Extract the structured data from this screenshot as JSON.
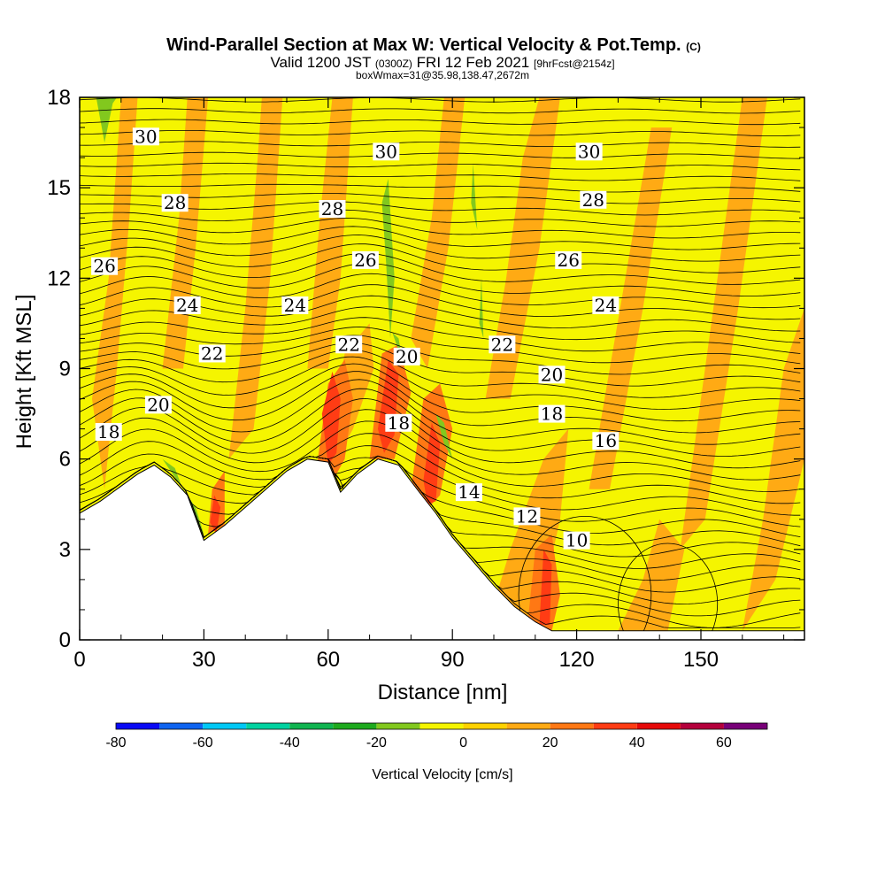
{
  "chart_data": {
    "type": "contour",
    "title": "Wind-Parallel Section at Max W: Vertical Velocity & Pot.Temp.",
    "title_mark": "(C)",
    "subtitle": {
      "valid": "Valid 1200 JST",
      "utc": "(0300Z)",
      "date": "FRI 12 Feb 2021",
      "forecast": "[9hrFcst@2154z]"
    },
    "box_info": "boxWmax=31@35.98,138.47,2672m",
    "xlabel": "Distance [nm]",
    "ylabel": "Height [Kft MSL]",
    "xlim": [
      0,
      175
    ],
    "ylim": [
      0,
      18
    ],
    "x_ticks": [
      0,
      30,
      60,
      90,
      120,
      150
    ],
    "y_ticks": [
      0,
      3,
      6,
      9,
      12,
      15,
      18
    ],
    "colorbar": {
      "label": "Vertical Velocity [cm/s]",
      "ticks": [
        -80,
        -60,
        -40,
        -20,
        0,
        20,
        40,
        60
      ],
      "levels": [
        -80,
        -70,
        -60,
        -50,
        -40,
        -30,
        -20,
        -10,
        0,
        10,
        20,
        30,
        40,
        50,
        60,
        70
      ],
      "colors": [
        "#0a0af5",
        "#0f64f0",
        "#00c8f5",
        "#00d2a0",
        "#10b450",
        "#1eaa1e",
        "#82c81e",
        "#f5f500",
        "#ffd200",
        "#ffaa14",
        "#ff7814",
        "#ff3c14",
        "#e60a0a",
        "#b4003c",
        "#780078"
      ]
    },
    "terrain_kft": [
      [
        0,
        4.2
      ],
      [
        5,
        4.6
      ],
      [
        10,
        5.1
      ],
      [
        14,
        5.5
      ],
      [
        18,
        5.8
      ],
      [
        22,
        5.4
      ],
      [
        26,
        4.8
      ],
      [
        30,
        3.3
      ],
      [
        35,
        3.8
      ],
      [
        40,
        4.4
      ],
      [
        45,
        5.0
      ],
      [
        50,
        5.6
      ],
      [
        55,
        6.0
      ],
      [
        60,
        5.9
      ],
      [
        63,
        4.9
      ],
      [
        67,
        5.5
      ],
      [
        72,
        6.0
      ],
      [
        77,
        5.8
      ],
      [
        82,
        4.9
      ],
      [
        86,
        4.2
      ],
      [
        90,
        3.4
      ],
      [
        95,
        2.6
      ],
      [
        100,
        1.8
      ],
      [
        105,
        1.1
      ],
      [
        110,
        0.6
      ],
      [
        114,
        0.3
      ],
      [
        118,
        0.3
      ],
      [
        175,
        0.3
      ]
    ],
    "theta_labels": [
      {
        "value": "30",
        "x": 16,
        "y": 16.7
      },
      {
        "value": "30",
        "x": 74,
        "y": 16.2
      },
      {
        "value": "30",
        "x": 123,
        "y": 16.2
      },
      {
        "value": "28",
        "x": 23,
        "y": 14.5
      },
      {
        "value": "28",
        "x": 61,
        "y": 14.3
      },
      {
        "value": "28",
        "x": 124,
        "y": 14.6
      },
      {
        "value": "26",
        "x": 6,
        "y": 12.4
      },
      {
        "value": "26",
        "x": 69,
        "y": 12.6
      },
      {
        "value": "26",
        "x": 118,
        "y": 12.6
      },
      {
        "value": "24",
        "x": 26,
        "y": 11.1
      },
      {
        "value": "24",
        "x": 52,
        "y": 11.1
      },
      {
        "value": "24",
        "x": 127,
        "y": 11.1
      },
      {
        "value": "22",
        "x": 32,
        "y": 9.5
      },
      {
        "value": "22",
        "x": 65,
        "y": 9.8
      },
      {
        "value": "22",
        "x": 102,
        "y": 9.8
      },
      {
        "value": "20",
        "x": 19,
        "y": 7.8
      },
      {
        "value": "20",
        "x": 79,
        "y": 9.4
      },
      {
        "value": "20",
        "x": 114,
        "y": 8.8
      },
      {
        "value": "18",
        "x": 7,
        "y": 6.9
      },
      {
        "value": "18",
        "x": 77,
        "y": 7.2
      },
      {
        "value": "18",
        "x": 114,
        "y": 7.5
      },
      {
        "value": "16",
        "x": 127,
        "y": 6.6
      },
      {
        "value": "14",
        "x": 94,
        "y": 4.9
      },
      {
        "value": "12",
        "x": 108,
        "y": 4.1
      },
      {
        "value": "10",
        "x": 120,
        "y": 3.3
      }
    ]
  }
}
